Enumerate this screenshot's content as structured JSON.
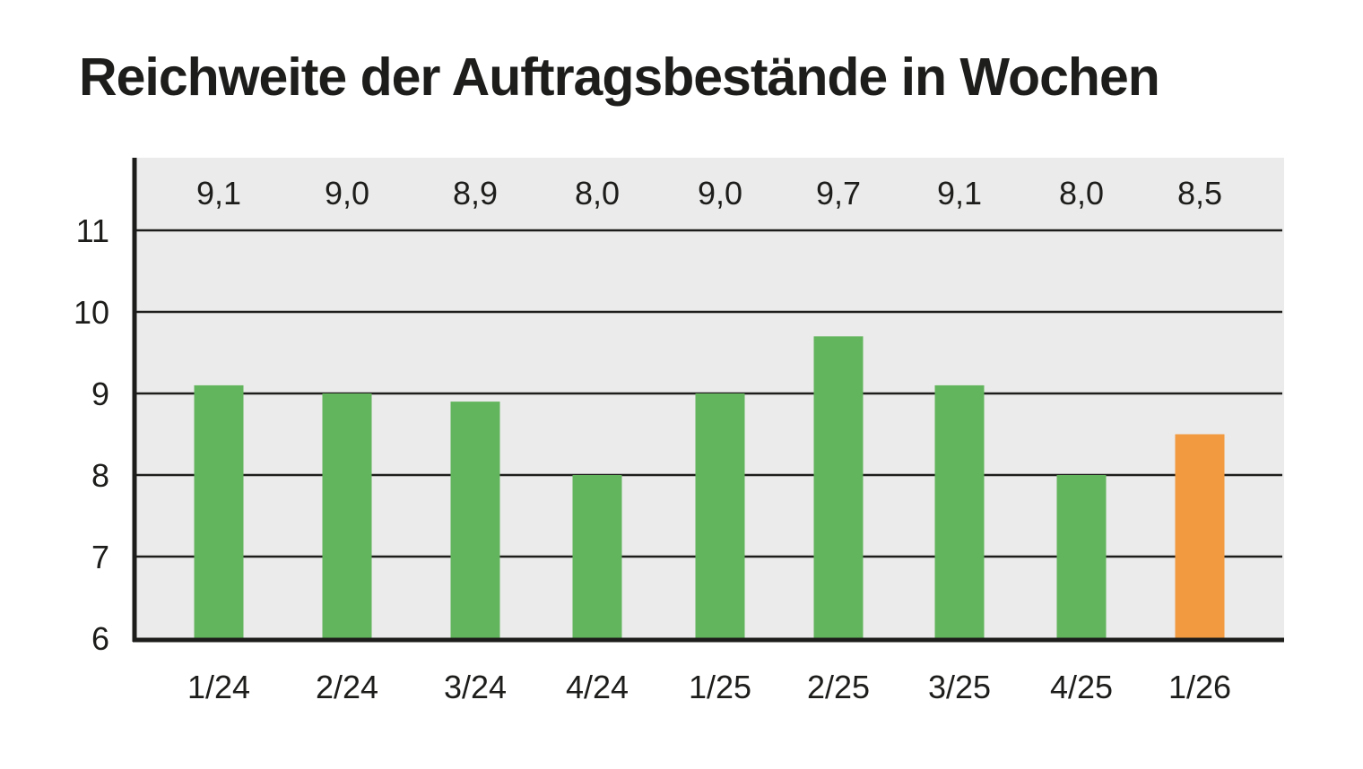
{
  "chart_data": {
    "type": "bar",
    "title": "Reichweite der Auftragsbestände in Wochen",
    "categories": [
      "1/24",
      "2/24",
      "3/24",
      "4/24",
      "1/25",
      "2/25",
      "3/25",
      "4/25",
      "1/26"
    ],
    "values": [
      9.1,
      9.0,
      8.9,
      8.0,
      9.0,
      9.7,
      9.1,
      8.0,
      8.5
    ],
    "value_labels": [
      "9,1",
      "9,0",
      "8,9",
      "8,0",
      "9,0",
      "9,7",
      "9,1",
      "8,0",
      "8,5"
    ],
    "xlabel": "",
    "ylabel": "",
    "ylim": [
      6,
      11
    ],
    "yticks": [
      {
        "value": 6,
        "label": "6"
      },
      {
        "value": 7,
        "label": "7"
      },
      {
        "value": 8,
        "label": "8"
      },
      {
        "value": 9,
        "label": "9"
      },
      {
        "value": 10,
        "label": "10"
      },
      {
        "value": 11,
        "label": "11"
      }
    ],
    "grid": true,
    "legend": "none",
    "colors": {
      "bar": "#63b55d",
      "highlight_bar": "#f29a3f",
      "plot_background": "#ebebeb",
      "axis": "#1d1d1b",
      "text": "#1d1d1b"
    },
    "highlight_category": "1/26"
  }
}
